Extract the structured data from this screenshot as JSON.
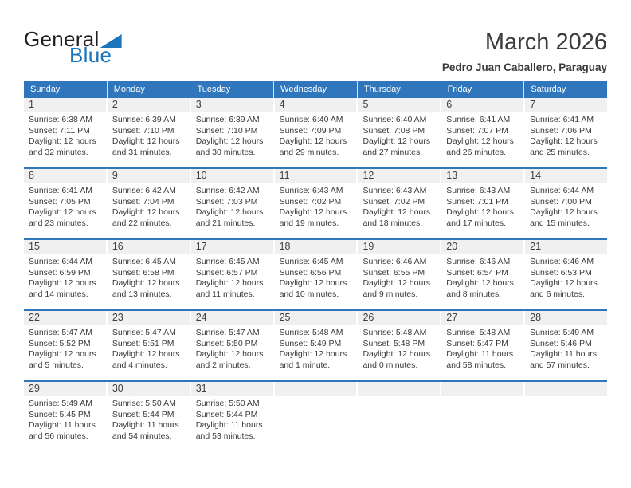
{
  "logo": {
    "general": "General",
    "blue": "Blue",
    "triangle_icon": "logo-triangle-icon"
  },
  "header": {
    "title": "March 2026",
    "subtitle": "Pedro Juan Caballero, Paraguay"
  },
  "colors": {
    "header_bar_blue": "#3076bc",
    "logo_blue": "#1b75bc",
    "day_band_gray": "#f0f0f0",
    "text_dark": "#3a3a3a",
    "weekday_text": "#ffffff"
  },
  "weekdays": [
    "Sunday",
    "Monday",
    "Tuesday",
    "Wednesday",
    "Thursday",
    "Friday",
    "Saturday"
  ],
  "weeks": [
    [
      {
        "day": "1",
        "sunrise": "Sunrise: 6:38 AM",
        "sunset": "Sunset: 7:11 PM",
        "daylight": "Daylight: 12 hours and 32 minutes."
      },
      {
        "day": "2",
        "sunrise": "Sunrise: 6:39 AM",
        "sunset": "Sunset: 7:10 PM",
        "daylight": "Daylight: 12 hours and 31 minutes."
      },
      {
        "day": "3",
        "sunrise": "Sunrise: 6:39 AM",
        "sunset": "Sunset: 7:10 PM",
        "daylight": "Daylight: 12 hours and 30 minutes."
      },
      {
        "day": "4",
        "sunrise": "Sunrise: 6:40 AM",
        "sunset": "Sunset: 7:09 PM",
        "daylight": "Daylight: 12 hours and 29 minutes."
      },
      {
        "day": "5",
        "sunrise": "Sunrise: 6:40 AM",
        "sunset": "Sunset: 7:08 PM",
        "daylight": "Daylight: 12 hours and 27 minutes."
      },
      {
        "day": "6",
        "sunrise": "Sunrise: 6:41 AM",
        "sunset": "Sunset: 7:07 PM",
        "daylight": "Daylight: 12 hours and 26 minutes."
      },
      {
        "day": "7",
        "sunrise": "Sunrise: 6:41 AM",
        "sunset": "Sunset: 7:06 PM",
        "daylight": "Daylight: 12 hours and 25 minutes."
      }
    ],
    [
      {
        "day": "8",
        "sunrise": "Sunrise: 6:41 AM",
        "sunset": "Sunset: 7:05 PM",
        "daylight": "Daylight: 12 hours and 23 minutes."
      },
      {
        "day": "9",
        "sunrise": "Sunrise: 6:42 AM",
        "sunset": "Sunset: 7:04 PM",
        "daylight": "Daylight: 12 hours and 22 minutes."
      },
      {
        "day": "10",
        "sunrise": "Sunrise: 6:42 AM",
        "sunset": "Sunset: 7:03 PM",
        "daylight": "Daylight: 12 hours and 21 minutes."
      },
      {
        "day": "11",
        "sunrise": "Sunrise: 6:43 AM",
        "sunset": "Sunset: 7:02 PM",
        "daylight": "Daylight: 12 hours and 19 minutes."
      },
      {
        "day": "12",
        "sunrise": "Sunrise: 6:43 AM",
        "sunset": "Sunset: 7:02 PM",
        "daylight": "Daylight: 12 hours and 18 minutes."
      },
      {
        "day": "13",
        "sunrise": "Sunrise: 6:43 AM",
        "sunset": "Sunset: 7:01 PM",
        "daylight": "Daylight: 12 hours and 17 minutes."
      },
      {
        "day": "14",
        "sunrise": "Sunrise: 6:44 AM",
        "sunset": "Sunset: 7:00 PM",
        "daylight": "Daylight: 12 hours and 15 minutes."
      }
    ],
    [
      {
        "day": "15",
        "sunrise": "Sunrise: 6:44 AM",
        "sunset": "Sunset: 6:59 PM",
        "daylight": "Daylight: 12 hours and 14 minutes."
      },
      {
        "day": "16",
        "sunrise": "Sunrise: 6:45 AM",
        "sunset": "Sunset: 6:58 PM",
        "daylight": "Daylight: 12 hours and 13 minutes."
      },
      {
        "day": "17",
        "sunrise": "Sunrise: 6:45 AM",
        "sunset": "Sunset: 6:57 PM",
        "daylight": "Daylight: 12 hours and 11 minutes."
      },
      {
        "day": "18",
        "sunrise": "Sunrise: 6:45 AM",
        "sunset": "Sunset: 6:56 PM",
        "daylight": "Daylight: 12 hours and 10 minutes."
      },
      {
        "day": "19",
        "sunrise": "Sunrise: 6:46 AM",
        "sunset": "Sunset: 6:55 PM",
        "daylight": "Daylight: 12 hours and 9 minutes."
      },
      {
        "day": "20",
        "sunrise": "Sunrise: 6:46 AM",
        "sunset": "Sunset: 6:54 PM",
        "daylight": "Daylight: 12 hours and 8 minutes."
      },
      {
        "day": "21",
        "sunrise": "Sunrise: 6:46 AM",
        "sunset": "Sunset: 6:53 PM",
        "daylight": "Daylight: 12 hours and 6 minutes."
      }
    ],
    [
      {
        "day": "22",
        "sunrise": "Sunrise: 5:47 AM",
        "sunset": "Sunset: 5:52 PM",
        "daylight": "Daylight: 12 hours and 5 minutes."
      },
      {
        "day": "23",
        "sunrise": "Sunrise: 5:47 AM",
        "sunset": "Sunset: 5:51 PM",
        "daylight": "Daylight: 12 hours and 4 minutes."
      },
      {
        "day": "24",
        "sunrise": "Sunrise: 5:47 AM",
        "sunset": "Sunset: 5:50 PM",
        "daylight": "Daylight: 12 hours and 2 minutes."
      },
      {
        "day": "25",
        "sunrise": "Sunrise: 5:48 AM",
        "sunset": "Sunset: 5:49 PM",
        "daylight": "Daylight: 12 hours and 1 minute."
      },
      {
        "day": "26",
        "sunrise": "Sunrise: 5:48 AM",
        "sunset": "Sunset: 5:48 PM",
        "daylight": "Daylight: 12 hours and 0 minutes."
      },
      {
        "day": "27",
        "sunrise": "Sunrise: 5:48 AM",
        "sunset": "Sunset: 5:47 PM",
        "daylight": "Daylight: 11 hours and 58 minutes."
      },
      {
        "day": "28",
        "sunrise": "Sunrise: 5:49 AM",
        "sunset": "Sunset: 5:46 PM",
        "daylight": "Daylight: 11 hours and 57 minutes."
      }
    ],
    [
      {
        "day": "29",
        "sunrise": "Sunrise: 5:49 AM",
        "sunset": "Sunset: 5:45 PM",
        "daylight": "Daylight: 11 hours and 56 minutes."
      },
      {
        "day": "30",
        "sunrise": "Sunrise: 5:50 AM",
        "sunset": "Sunset: 5:44 PM",
        "daylight": "Daylight: 11 hours and 54 minutes."
      },
      {
        "day": "31",
        "sunrise": "Sunrise: 5:50 AM",
        "sunset": "Sunset: 5:44 PM",
        "daylight": "Daylight: 11 hours and 53 minutes."
      },
      {
        "day": "",
        "sunrise": "",
        "sunset": "",
        "daylight": ""
      },
      {
        "day": "",
        "sunrise": "",
        "sunset": "",
        "daylight": ""
      },
      {
        "day": "",
        "sunrise": "",
        "sunset": "",
        "daylight": ""
      },
      {
        "day": "",
        "sunrise": "",
        "sunset": "",
        "daylight": ""
      }
    ]
  ]
}
